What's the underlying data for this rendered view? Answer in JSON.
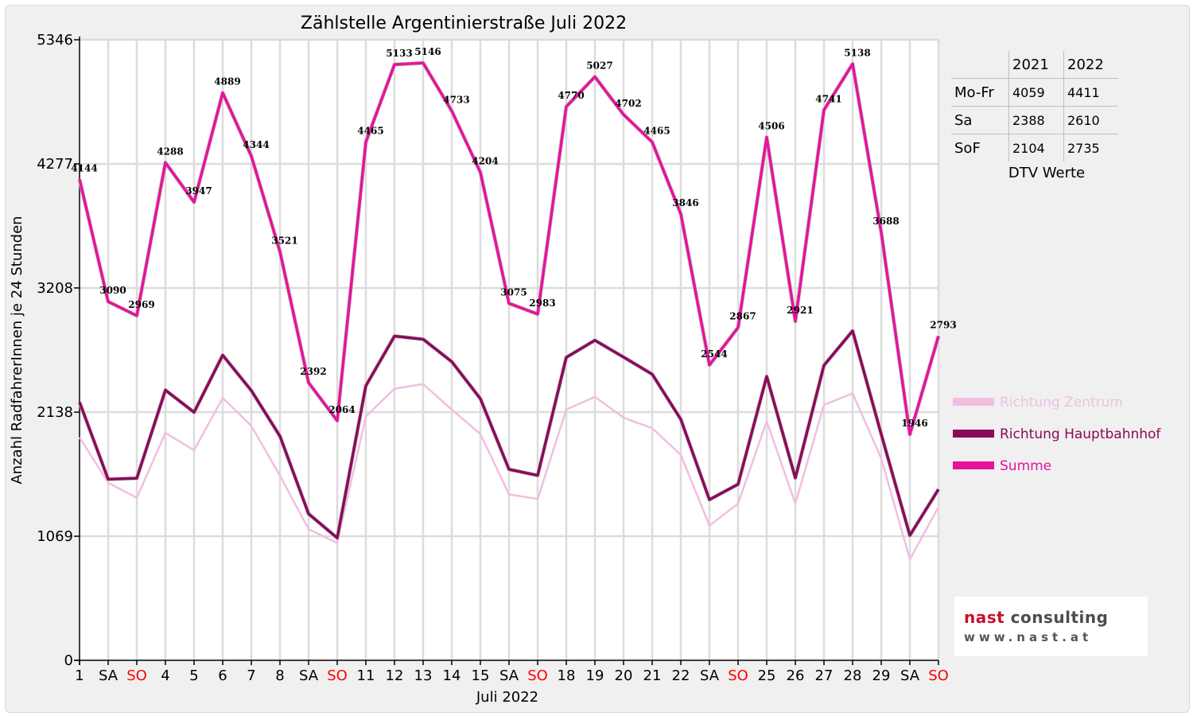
{
  "chart_data": {
    "type": "line",
    "title": "Zählstelle Argentinierstraße Juli 2022",
    "xlabel": "Juli 2022",
    "ylabel": "Anzahl RadfahrerInnen je 24 Stunden",
    "ylim": [
      0,
      5346
    ],
    "yticks": [
      "0",
      "1069",
      "2138",
      "3208",
      "4277",
      "5346"
    ],
    "categories": [
      "1",
      "SA",
      "SO",
      "4",
      "5",
      "6",
      "7",
      "8",
      "SA",
      "SO",
      "11",
      "12",
      "13",
      "14",
      "15",
      "SA",
      "SO",
      "18",
      "19",
      "20",
      "21",
      "22",
      "SA",
      "SO",
      "25",
      "26",
      "27",
      "28",
      "29",
      "SA",
      "SO"
    ],
    "weekend_color": "#ff0000",
    "grid": true,
    "legend_position": "right",
    "series": [
      {
        "name": "Richtung Zentrum",
        "color": "#f0bfe0",
        "values": [
          1920,
          1530,
          1400,
          1960,
          1810,
          2260,
          2020,
          1590,
          1130,
          1010,
          2100,
          2340,
          2380,
          2160,
          1950,
          1430,
          1390,
          2160,
          2270,
          2090,
          2000,
          1770,
          1160,
          1350,
          2060,
          1350,
          2200,
          2300,
          1740,
          870,
          1320
        ]
      },
      {
        "name": "Richtung Hauptbahnhof",
        "color": "#8b0a5a",
        "values": [
          2224,
          1560,
          1569,
          2328,
          2137,
          2629,
          2324,
          1931,
          1262,
          1054,
          2365,
          2793,
          2766,
          2573,
          2254,
          1645,
          1593,
          2610,
          2757,
          2612,
          2465,
          2076,
          1384,
          1517,
          2446,
          1571,
          2541,
          2838,
          1948,
          1076,
          1473
        ]
      },
      {
        "name": "Summe",
        "color": "#e6149b",
        "values": [
          4144,
          3090,
          2969,
          4288,
          3947,
          4889,
          4344,
          3521,
          2392,
          2064,
          4465,
          5133,
          5146,
          4733,
          4204,
          3075,
          2983,
          4770,
          5027,
          4702,
          4465,
          3846,
          2544,
          2867,
          4506,
          2921,
          4741,
          5138,
          3688,
          1946,
          2793
        ]
      }
    ],
    "data_labels": [
      "4144",
      "3090",
      "2969",
      "4288",
      "3947",
      "4889",
      "4344",
      "3521",
      "2392",
      "2064",
      "4465",
      "5133",
      "5146",
      "4733",
      "4204",
      "3075",
      "2983",
      "4770",
      "5027",
      "4702",
      "4465",
      "3846",
      "2544",
      "2867",
      "4506",
      "2921",
      "4741",
      "5138",
      "3688",
      "1946",
      "2793"
    ]
  },
  "dtv_table": {
    "headers": [
      "",
      "2021",
      "2022"
    ],
    "rows": [
      {
        "label": "Mo-Fr",
        "v2021": "4059",
        "v2022": "4411"
      },
      {
        "label": "Sa",
        "v2021": "2388",
        "v2022": "2610"
      },
      {
        "label": "SoF",
        "v2021": "2104",
        "v2022": "2735"
      }
    ],
    "caption": "DTV Werte"
  },
  "logo": {
    "name_part1": "nast",
    "name_part2": " consulting",
    "url": "www.nast.at"
  }
}
